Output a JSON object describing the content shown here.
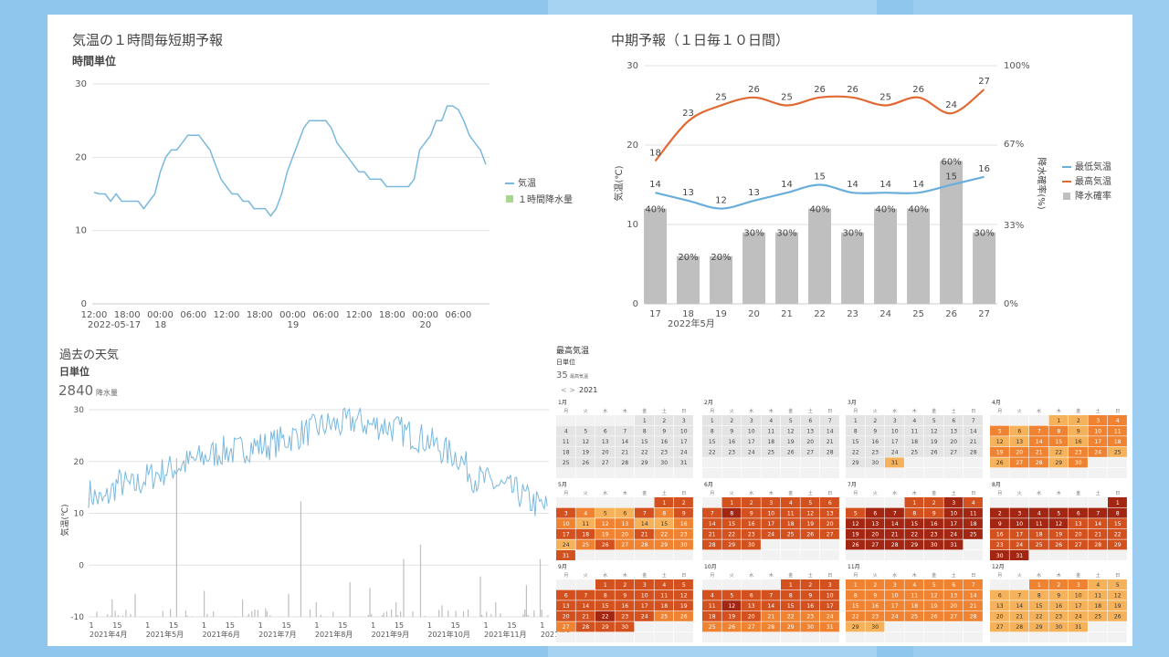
{
  "colors": {
    "background": "#8ec6ee",
    "panel": "#ffffff",
    "temperature_line": "#7ab8dd",
    "precip_legend": "#a8d58f",
    "max_temp": "#e06a33",
    "min_temp": "#6aaedc",
    "precip_bar": "#bfbfbf",
    "grid": "#e2e2e2"
  },
  "chart_data": [
    {
      "id": "hourly",
      "type": "line",
      "title": "気温の１時間毎短期予報",
      "subtitle": "時間単位",
      "ylim": [
        0,
        30
      ],
      "yticks": [
        "0",
        "10",
        "20",
        "30"
      ],
      "xticks": [
        "12:00",
        "18:00",
        "00:00",
        "06:00",
        "12:00",
        "18:00",
        "00:00",
        "06:00",
        "12:00",
        "18:00",
        "00:00",
        "06:00"
      ],
      "xsub": [
        "2022-05-17",
        "18",
        "19",
        "20"
      ],
      "legend": [
        "気温",
        "１時間降水量"
      ],
      "series": [
        {
          "name": "気温",
          "values": [
            15.2,
            15,
            15,
            14,
            15,
            14,
            14,
            14,
            14,
            13,
            14,
            15,
            18,
            20,
            21,
            21,
            22,
            23,
            23,
            23,
            22,
            21,
            19,
            17,
            16,
            15,
            15,
            14,
            14,
            13,
            13,
            13,
            12,
            13,
            15,
            18,
            20,
            22,
            24,
            25,
            25,
            25,
            25,
            24,
            22,
            21,
            20,
            19,
            18,
            18,
            17,
            17,
            17,
            16,
            16,
            16,
            16,
            16,
            17,
            21,
            22,
            23,
            25,
            25,
            27,
            27,
            26.5,
            25,
            23,
            22,
            21,
            19
          ]
        },
        {
          "name": "１時間降水量",
          "values": []
        }
      ]
    },
    {
      "id": "midterm",
      "type": "bar+line",
      "title": "中期予報（１日毎１０日間）",
      "categories": [
        "17",
        "18",
        "19",
        "20",
        "21",
        "22",
        "23",
        "24",
        "25",
        "26",
        "27"
      ],
      "xsub": "2022年5月",
      "ylim": [
        0,
        30
      ],
      "yticks": [
        "0",
        "10",
        "20",
        "30"
      ],
      "y2ticks": [
        "0%",
        "33%",
        "67%",
        "100%"
      ],
      "ylabel": "気温(℃)",
      "y2label": "降水確率(%)",
      "legend": [
        "最低気温",
        "最高気温",
        "降水確率"
      ],
      "series": [
        {
          "name": "最低気温",
          "values": [
            14,
            13,
            12,
            13,
            14,
            15,
            14,
            14,
            14,
            15,
            16
          ]
        },
        {
          "name": "最高気温",
          "values": [
            18,
            23,
            25,
            26,
            25,
            26,
            26,
            25,
            26,
            24,
            27
          ]
        },
        {
          "name": "降水確率",
          "values": [
            40,
            20,
            20,
            30,
            30,
            40,
            30,
            40,
            40,
            60,
            30
          ]
        }
      ]
    },
    {
      "id": "past",
      "type": "line+bar",
      "title": "過去の天気",
      "subtitle": "日単位",
      "kpi_value": "2840",
      "kpi_label": "降水量",
      "ylim": [
        -10,
        30
      ],
      "yticks": [
        "-10",
        "0",
        "10",
        "20",
        "30"
      ],
      "ylabel": "気温(℃)",
      "xticks": [
        "1",
        "15",
        "1",
        "15",
        "1",
        "15",
        "1",
        "15",
        "1",
        "15",
        "1",
        "15",
        "1",
        "15",
        "1",
        "15",
        "1"
      ],
      "month_labels": [
        "2021年4月",
        "2021年5月",
        "2021年6月",
        "2021年7月",
        "2021年8月",
        "2021年9月",
        "2021年10月",
        "2021年11月",
        "2021年1"
      ],
      "temp_anchors": [
        14,
        12,
        16,
        15,
        17,
        18,
        19,
        20,
        21,
        22,
        22,
        23,
        23,
        24,
        25,
        26,
        27,
        27,
        28,
        27,
        27,
        26,
        25,
        24,
        22,
        21,
        17,
        16,
        15,
        14,
        12,
        11
      ],
      "precip_spikes": [
        [
          15,
          6
        ],
        [
          30,
          8
        ],
        [
          57,
          55
        ],
        [
          75,
          9
        ],
        [
          100,
          6
        ],
        [
          130,
          8
        ],
        [
          138,
          40
        ],
        [
          148,
          5
        ],
        [
          170,
          12
        ],
        [
          183,
          10
        ],
        [
          200,
          5
        ],
        [
          205,
          20
        ],
        [
          216,
          25
        ],
        [
          230,
          4
        ],
        [
          255,
          14
        ],
        [
          265,
          5
        ],
        [
          285,
          11
        ],
        [
          294,
          20
        ]
      ]
    },
    {
      "id": "calendar",
      "type": "heatmap",
      "title": "最高気温",
      "subtitle": "日単位",
      "kpi_value": "35",
      "kpi_label": "最高気温",
      "year": "2021",
      "nav": "< >",
      "weekdays": [
        "月",
        "火",
        "水",
        "木",
        "金",
        "土",
        "日"
      ],
      "months": [
        {
          "label": "1月",
          "start": 4,
          "days": 31,
          "lvl": [
            0
          ]
        },
        {
          "label": "2月",
          "start": 0,
          "days": 28,
          "lvl": [
            0
          ]
        },
        {
          "label": "3月",
          "start": 0,
          "days": 31,
          "lvl": [
            0,
            0,
            0,
            0,
            0,
            0,
            0,
            0,
            0,
            0,
            0,
            0,
            0,
            0,
            0,
            0,
            0,
            0,
            0,
            0,
            0,
            0,
            0,
            0,
            0,
            0,
            0,
            0,
            0,
            0,
            1
          ]
        },
        {
          "label": "4月",
          "start": 3,
          "days": 30,
          "lvl": [
            1,
            1,
            2,
            2,
            2,
            1,
            2,
            2,
            1,
            2,
            2,
            1,
            1,
            2,
            2,
            1,
            2,
            2,
            2,
            2,
            2,
            1,
            2,
            2,
            1,
            1,
            2,
            2,
            1,
            2
          ]
        },
        {
          "label": "5月",
          "start": 5,
          "days": 31,
          "lvl": [
            3,
            3,
            3,
            2,
            1,
            1,
            3,
            2,
            3,
            2,
            1,
            2,
            2,
            1,
            1,
            2,
            3,
            3,
            2,
            2,
            3,
            2,
            2,
            1,
            2,
            3,
            2,
            2,
            2,
            2,
            3
          ]
        },
        {
          "label": "6月",
          "start": 1,
          "days": 30,
          "lvl": [
            3,
            3,
            3,
            3,
            3,
            3,
            3,
            4,
            3,
            3,
            3,
            3,
            3,
            3,
            3,
            3,
            3,
            3,
            3,
            3,
            3,
            3,
            3,
            3,
            3,
            3,
            3,
            3,
            3,
            3
          ]
        },
        {
          "label": "7月",
          "start": 3,
          "days": 31,
          "lvl": [
            3,
            3,
            4,
            3,
            3,
            4,
            4,
            3,
            3,
            4,
            4,
            4,
            4,
            4,
            4,
            4,
            4,
            4,
            4,
            4,
            4,
            4,
            4,
            4,
            4,
            4,
            4,
            4,
            4,
            4,
            4
          ]
        },
        {
          "label": "8月",
          "start": 6,
          "days": 31,
          "lvl": [
            4,
            4,
            4,
            4,
            4,
            4,
            4,
            4,
            4,
            4,
            4,
            4,
            3,
            3,
            3,
            3,
            3,
            3,
            3,
            3,
            3,
            3,
            3,
            3,
            3,
            3,
            3,
            3,
            3,
            4,
            4
          ]
        },
        {
          "label": "9月",
          "start": 2,
          "days": 30,
          "lvl": [
            3,
            3,
            3,
            3,
            3,
            3,
            3,
            3,
            3,
            3,
            3,
            3,
            3,
            3,
            3,
            3,
            3,
            3,
            3,
            3,
            3,
            4,
            3,
            3,
            2,
            2,
            2,
            3,
            3,
            3
          ]
        },
        {
          "label": "10月",
          "start": 4,
          "days": 31,
          "lvl": [
            3,
            3,
            3,
            3,
            3,
            3,
            3,
            3,
            3,
            3,
            3,
            4,
            3,
            3,
            3,
            3,
            3,
            3,
            3,
            3,
            2,
            2,
            2,
            2,
            2,
            2,
            2,
            2,
            2,
            2,
            2
          ]
        },
        {
          "label": "11月",
          "start": 0,
          "days": 30,
          "lvl": [
            2,
            2,
            2,
            2,
            2,
            2,
            2,
            2,
            2,
            2,
            2,
            2,
            2,
            2,
            2,
            2,
            2,
            2,
            2,
            2,
            2,
            2,
            2,
            2,
            2,
            2,
            2,
            2,
            1,
            1
          ]
        },
        {
          "label": "12月",
          "start": 2,
          "days": 31,
          "lvl": [
            2,
            2,
            2,
            1,
            1,
            1,
            1,
            1,
            1,
            1,
            1,
            1,
            1,
            1,
            1,
            1,
            1,
            1,
            1,
            1,
            1,
            1,
            1,
            1,
            1,
            1,
            1,
            1,
            1,
            1,
            1
          ]
        }
      ]
    }
  ]
}
